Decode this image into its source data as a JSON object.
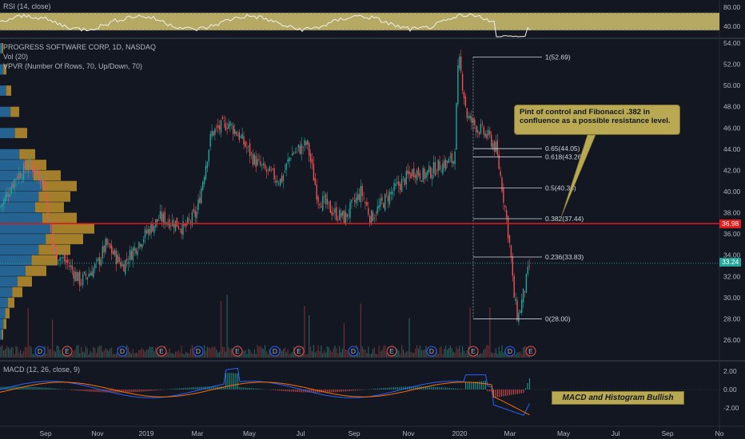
{
  "rsi": {
    "label": "RSI (14, close)",
    "ticks": [
      "80.00",
      "40.00"
    ]
  },
  "main": {
    "title": "PROGRESS SOFTWARE CORP, 1D, NASDAQ",
    "vol_label": "Vol (20)",
    "vpvr_label": "VPVR (Number Of Rows, 70, Up/Down, 70)",
    "yticks": [
      "54.00",
      "52.00",
      "50.00",
      "48.00",
      "46.00",
      "44.00",
      "42.00",
      "40.00",
      "38.00",
      "36.00",
      "34.00",
      "32.00",
      "30.00",
      "28.00",
      "26.00"
    ],
    "horizontal_level": "36.98",
    "last_price": "33.24",
    "fib_levels": [
      {
        "label": "1(52.69)",
        "value": 52.69
      },
      {
        "label": "0.65(44.05)",
        "value": 44.05
      },
      {
        "label": "0.618(43.26)",
        "value": 43.26
      },
      {
        "label": "0.5(40.35)",
        "value": 40.35
      },
      {
        "label": "0.382(37.44)",
        "value": 37.44
      },
      {
        "label": "0.236(33.83)",
        "value": 33.83
      },
      {
        "label": "0(28.00)",
        "value": 28.0
      }
    ],
    "events": [
      "D",
      "E",
      "D",
      "E",
      "D",
      "E",
      "D",
      "E",
      "D",
      "E",
      "D",
      "E"
    ],
    "callout": "Pint of control and Fibonacci .382 in confluence as a possible resistance level."
  },
  "macd": {
    "label": "MACD (12, 26, close, 9)",
    "ticks": [
      "2.00",
      "0.00",
      "-2.00"
    ],
    "note": "MACD and Histogram Bullish"
  },
  "xaxis": {
    "ticks": [
      "Sep",
      "Nov",
      "2019",
      "Mar",
      "May",
      "Jul",
      "Sep",
      "Nov",
      "2020",
      "Mar",
      "May",
      "Jul",
      "Sep",
      "No"
    ]
  },
  "colors": {
    "up": "#26a69a",
    "down": "#ef5350",
    "level": "#e21b1b",
    "rsi_band": "#c8b96a",
    "macd": "#2962ff",
    "signal": "#ff6d00"
  },
  "chart_data": {
    "type": "candlestick",
    "title": "PROGRESS SOFTWARE CORP, 1D, NASDAQ",
    "price_path": [
      [
        "2018-08",
        38.5
      ],
      [
        "2018-08-20",
        41.5
      ],
      [
        "2018-09-05",
        42.5
      ],
      [
        "2018-09-20",
        41.0
      ],
      [
        "2018-10",
        34.5
      ],
      [
        "2018-10-20",
        33.0
      ],
      [
        "2018-11",
        31.5
      ],
      [
        "2018-11-20",
        33.0
      ],
      [
        "2018-12",
        35.0
      ],
      [
        "2018-12-20",
        33.0
      ],
      [
        "2019-01",
        34.5
      ],
      [
        "2019-01-20",
        36.5
      ],
      [
        "2019-02",
        37.5
      ],
      [
        "2019-02-20",
        37.0
      ],
      [
        "2019-03",
        36.5
      ],
      [
        "2019-03-15",
        38.0
      ],
      [
        "2019-04",
        45.5
      ],
      [
        "2019-04-20",
        46.5
      ],
      [
        "2019-05",
        45.5
      ],
      [
        "2019-05-20",
        43.0
      ],
      [
        "2019-06",
        42.0
      ],
      [
        "2019-06-20",
        41.0
      ],
      [
        "2019-07",
        43.5
      ],
      [
        "2019-07-20",
        44.5
      ],
      [
        "2019-08",
        39.5
      ],
      [
        "2019-08-20",
        38.0
      ],
      [
        "2019-09",
        37.5
      ],
      [
        "2019-09-20",
        40.0
      ],
      [
        "2019-10",
        37.5
      ],
      [
        "2019-10-20",
        39.5
      ],
      [
        "2019-11",
        40.5
      ],
      [
        "2019-11-20",
        42.0
      ],
      [
        "2019-12",
        41.5
      ],
      [
        "2019-12-20",
        42.5
      ],
      [
        "2020-01-05",
        43.0
      ],
      [
        "2020-01-10",
        52.69
      ],
      [
        "2020-01-20",
        47.0
      ],
      [
        "2020-02",
        46.0
      ],
      [
        "2020-02-15",
        45.0
      ],
      [
        "2020-02-22",
        44.0
      ],
      [
        "2020-02-28",
        41.0
      ],
      [
        "2020-03-05",
        37.5
      ],
      [
        "2020-03-10",
        34.0
      ],
      [
        "2020-03-13",
        30.5
      ],
      [
        "2020-03-18",
        28.0
      ],
      [
        "2020-03-25",
        30.5
      ],
      [
        "2020-04-01",
        33.24
      ]
    ],
    "horizontal_level": 36.98,
    "last_price": 33.24,
    "fibonacci": {
      "high": 52.69,
      "low": 28.0
    },
    "ylim": [
      25,
      55
    ]
  }
}
